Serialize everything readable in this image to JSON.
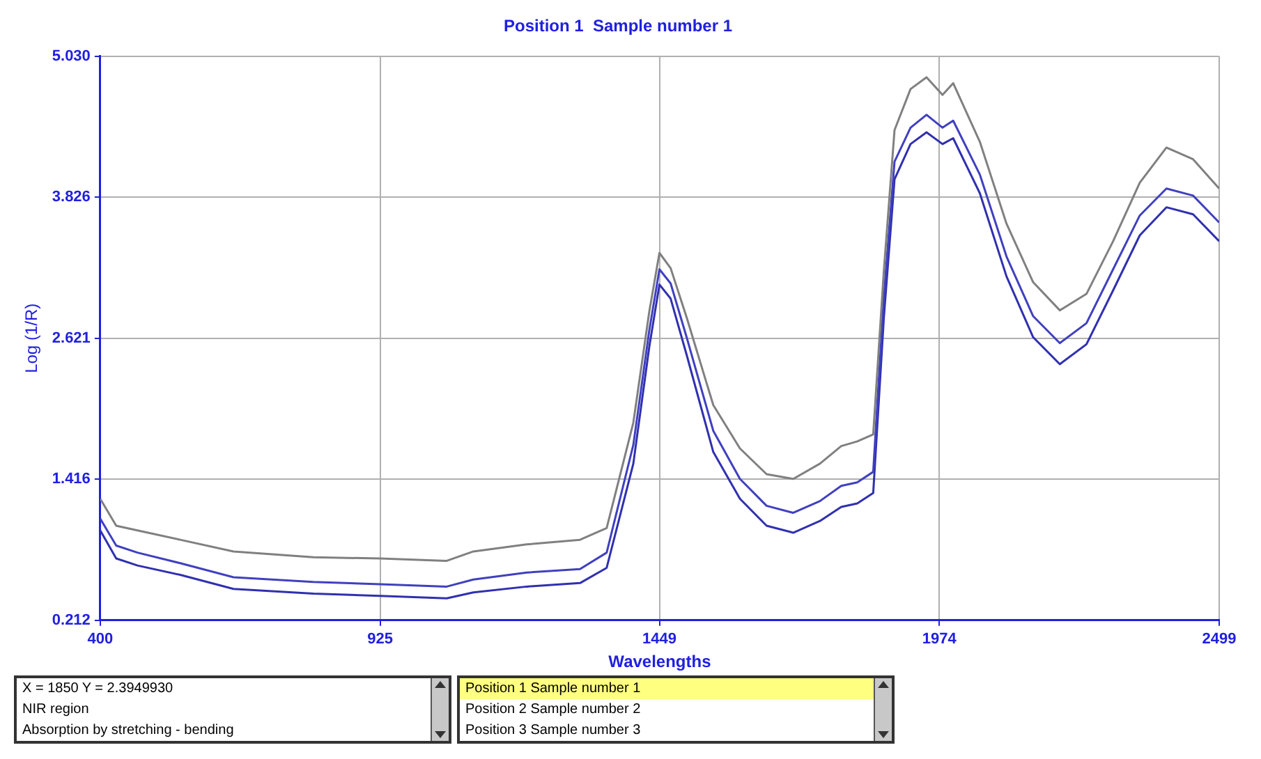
{
  "chart_data": {
    "type": "line",
    "title": "Position 1  Sample number 1",
    "xlabel": "Wavelengths",
    "ylabel": "Log (1/R)",
    "x": [
      400,
      430,
      470,
      550,
      650,
      800,
      925,
      1050,
      1100,
      1200,
      1300,
      1350,
      1400,
      1430,
      1449,
      1470,
      1500,
      1550,
      1600,
      1650,
      1700,
      1750,
      1790,
      1820,
      1850,
      1870,
      1890,
      1920,
      1950,
      1980,
      2000,
      2050,
      2100,
      2150,
      2200,
      2250,
      2300,
      2350,
      2400,
      2450,
      2499
    ],
    "series": [
      {
        "color": "#808080",
        "values": [
          1.25,
          1.02,
          0.98,
          0.9,
          0.8,
          0.75,
          0.74,
          0.72,
          0.8,
          0.86,
          0.9,
          1.0,
          1.9,
          2.85,
          3.35,
          3.22,
          2.8,
          2.05,
          1.68,
          1.46,
          1.42,
          1.55,
          1.7,
          1.74,
          1.8,
          3.2,
          4.4,
          4.75,
          4.85,
          4.7,
          4.8,
          4.3,
          3.6,
          3.1,
          2.86,
          3.0,
          3.45,
          3.95,
          4.25,
          4.15,
          3.9
        ]
      },
      {
        "color": "#4040c0",
        "values": [
          1.08,
          0.85,
          0.79,
          0.7,
          0.58,
          0.54,
          0.52,
          0.5,
          0.56,
          0.62,
          0.65,
          0.79,
          1.71,
          2.69,
          3.21,
          3.09,
          2.63,
          1.83,
          1.42,
          1.19,
          1.13,
          1.23,
          1.36,
          1.39,
          1.48,
          2.98,
          4.13,
          4.42,
          4.53,
          4.42,
          4.48,
          4.02,
          3.32,
          2.81,
          2.58,
          2.75,
          3.21,
          3.67,
          3.9,
          3.84,
          3.61
        ]
      },
      {
        "color": "#3030b0",
        "values": [
          0.98,
          0.74,
          0.68,
          0.6,
          0.48,
          0.44,
          0.42,
          0.4,
          0.45,
          0.5,
          0.53,
          0.66,
          1.55,
          2.55,
          3.08,
          2.96,
          2.48,
          1.65,
          1.25,
          1.02,
          0.96,
          1.06,
          1.18,
          1.21,
          1.3,
          2.8,
          3.98,
          4.28,
          4.38,
          4.28,
          4.33,
          3.86,
          3.15,
          2.63,
          2.4,
          2.57,
          3.03,
          3.5,
          3.74,
          3.68,
          3.45
        ]
      }
    ],
    "xlim": [
      400,
      2499
    ],
    "xticks": [
      400,
      925,
      1449,
      1974,
      2499
    ],
    "ylim": [
      0.212,
      5.03
    ],
    "yticks": [
      {
        "value": 0.212,
        "label": "0.212"
      },
      {
        "value": 1.416,
        "label": "1.416"
      },
      {
        "value": 2.621,
        "label": "2.621"
      },
      {
        "value": 3.826,
        "label": "3.826"
      },
      {
        "value": 5.03,
        "label": "5.030"
      }
    ],
    "grid": true,
    "legend": false,
    "marker": "none",
    "line_style": "solid",
    "annotations": [
      "X = 1850    Y = 2.3949930",
      "NIR region",
      "Absorption by stretching - bending",
      "Position 1  Sample number 1",
      "Position 2  Sample number 2",
      "Position 3  Sample number 3"
    ]
  }
}
